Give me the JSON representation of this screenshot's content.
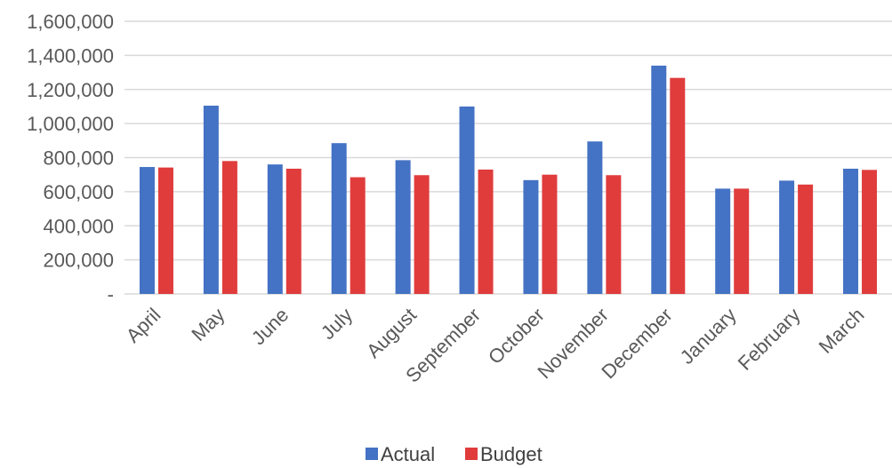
{
  "chart_data": {
    "type": "bar",
    "categories": [
      "April",
      "May",
      "June",
      "July",
      "August",
      "September",
      "October",
      "November",
      "December",
      "January",
      "February",
      "March"
    ],
    "series": [
      {
        "name": "Actual",
        "color": "#4472c4",
        "values": [
          745000,
          1105000,
          760000,
          885000,
          785000,
          1100000,
          668000,
          895000,
          1340000,
          618000,
          665000,
          735000
        ]
      },
      {
        "name": "Budget",
        "color": "#e03c3c",
        "values": [
          742000,
          780000,
          735000,
          685000,
          697000,
          730000,
          700000,
          697000,
          1268000,
          618000,
          642000,
          728000
        ]
      }
    ],
    "ylim": [
      0,
      1600000
    ],
    "y_ticks": [
      {
        "value": 0,
        "label": "-"
      },
      {
        "value": 200000,
        "label": "200,000"
      },
      {
        "value": 400000,
        "label": "400,000"
      },
      {
        "value": 600000,
        "label": "600,000"
      },
      {
        "value": 800000,
        "label": "800,000"
      },
      {
        "value": 1000000,
        "label": "1,000,000"
      },
      {
        "value": 1200000,
        "label": "1,200,000"
      },
      {
        "value": 1400000,
        "label": "1,400,000"
      },
      {
        "value": 1600000,
        "label": "1,600,000"
      }
    ],
    "grid": true,
    "legend_position": "bottom",
    "title": "",
    "xlabel": "",
    "ylabel": ""
  }
}
